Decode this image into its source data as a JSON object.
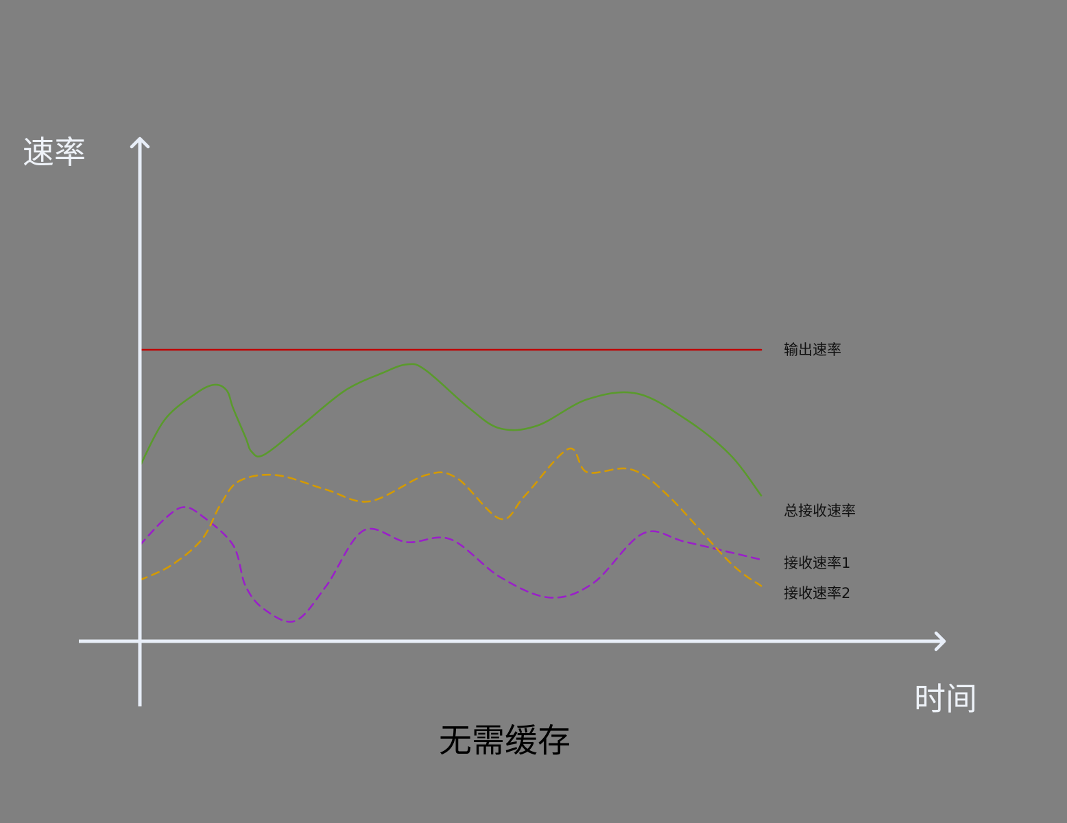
{
  "chart_data": {
    "type": "line",
    "title": "无需缓存",
    "xlabel": "时间",
    "ylabel": "速率",
    "grid": false,
    "axis_color": "#e8eef8",
    "series": [
      {
        "name": "输出速率",
        "color": "#c00000",
        "dash": "solid",
        "points": [
          [
            0,
            100
          ],
          [
            100,
            100
          ]
        ]
      },
      {
        "name": "总接收速率",
        "color": "#5a9a2c",
        "dash": "solid",
        "points": [
          [
            0,
            60
          ],
          [
            4,
            76
          ],
          [
            9,
            85
          ],
          [
            12,
            88
          ],
          [
            14,
            86
          ],
          [
            15,
            80
          ],
          [
            17,
            70
          ],
          [
            18,
            65
          ],
          [
            20,
            64
          ],
          [
            26,
            74
          ],
          [
            33,
            86
          ],
          [
            39,
            92
          ],
          [
            43,
            95
          ],
          [
            46,
            93
          ],
          [
            53,
            80
          ],
          [
            58,
            73
          ],
          [
            64,
            74
          ],
          [
            72,
            83
          ],
          [
            80,
            85
          ],
          [
            88,
            76
          ],
          [
            95,
            64
          ],
          [
            100,
            50
          ]
        ]
      },
      {
        "name": "接收速率1",
        "color": "#9a1fc9",
        "dash": "dashed",
        "points": [
          [
            0,
            33
          ],
          [
            4,
            42
          ],
          [
            7,
            46
          ],
          [
            10,
            43
          ],
          [
            15,
            33
          ],
          [
            17,
            19
          ],
          [
            20,
            11
          ],
          [
            25,
            7
          ],
          [
            30,
            19
          ],
          [
            36,
            38
          ],
          [
            43,
            34
          ],
          [
            50,
            35
          ],
          [
            58,
            22
          ],
          [
            66,
            15
          ],
          [
            73,
            20
          ],
          [
            81,
            37
          ],
          [
            88,
            34
          ],
          [
            100,
            28
          ]
        ]
      },
      {
        "name": "接收速率2",
        "color": "#d49a00",
        "dash": "dashed",
        "points": [
          [
            0,
            21
          ],
          [
            5,
            26
          ],
          [
            10,
            35
          ],
          [
            13,
            47
          ],
          [
            16,
            55
          ],
          [
            22,
            57
          ],
          [
            30,
            52
          ],
          [
            37,
            48
          ],
          [
            46,
            57
          ],
          [
            51,
            56
          ],
          [
            58,
            42
          ],
          [
            62,
            50
          ],
          [
            69,
            66
          ],
          [
            72,
            58
          ],
          [
            79,
            59
          ],
          [
            85,
            50
          ],
          [
            95,
            27
          ],
          [
            100,
            19
          ]
        ]
      }
    ]
  }
}
